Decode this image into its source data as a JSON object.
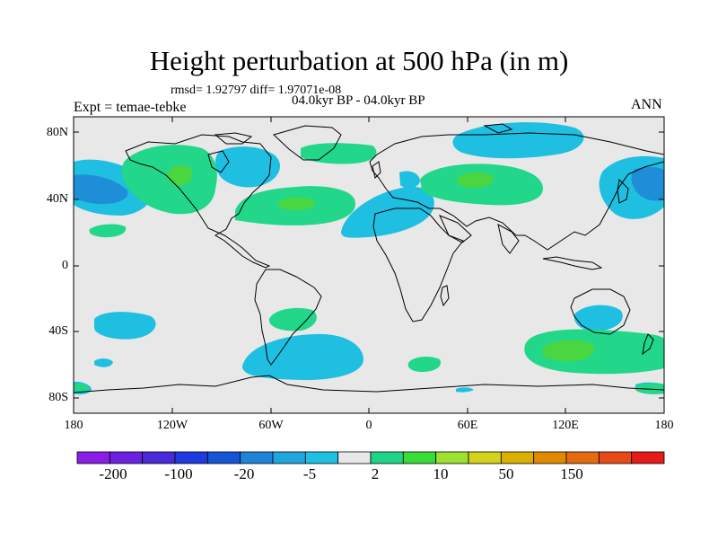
{
  "title": "Height perturbation at 500 hPa (in m)",
  "stats": "rmsd= 1.92797 diff= 1.97071e-08",
  "period": "04.0kyr BP - 04.0kyr BP",
  "experiment": "Expt = temae-tebke",
  "season": "ANN",
  "lat_labels": [
    "80N",
    "40N",
    "0",
    "40S",
    "80S"
  ],
  "lon_labels": [
    "180",
    "120W",
    "60W",
    "0",
    "60E",
    "120E",
    "180"
  ],
  "colorbar": {
    "labels": [
      "-200",
      "-100",
      "-20",
      "-5",
      "2",
      "10",
      "50",
      "150"
    ],
    "colors": [
      "#8b1ee6",
      "#6a22e0",
      "#4a2ad8",
      "#1f3ae0",
      "#1455d6",
      "#1e84d8",
      "#20a6dc",
      "#20c0e4",
      "#e8e8e8",
      "#20d486",
      "#3adc3a",
      "#9ee030",
      "#d4d21a",
      "#dcb000",
      "#e08a00",
      "#e66a10",
      "#e84a16",
      "#e61a16"
    ]
  },
  "colors": {
    "background": "#e8e8e8",
    "light_blue": "#1ebfe0",
    "mid_blue": "#1e8ed8",
    "light_green": "#22d68a",
    "mid_green": "#4ad640"
  }
}
